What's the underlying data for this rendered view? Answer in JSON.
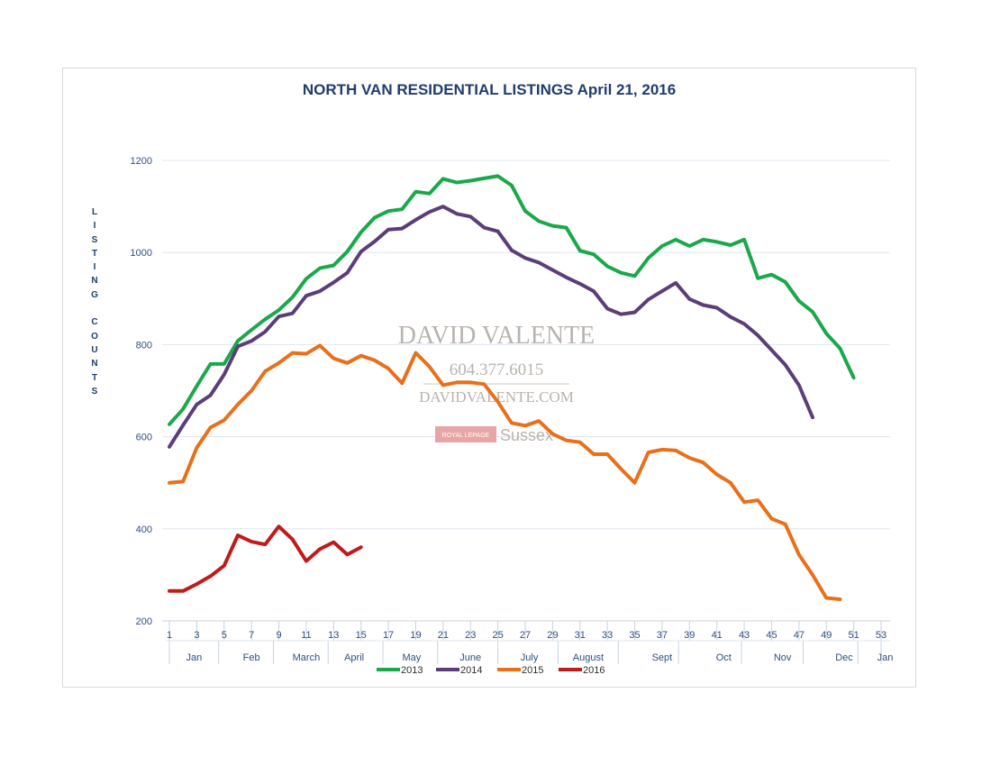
{
  "chart_data": {
    "type": "line",
    "title": "NORTH VAN RESIDENTIAL LISTINGS April 21, 2016",
    "ylabel": "LISTING COUNTS",
    "xlabel": "",
    "ylim": [
      200,
      1200
    ],
    "yticks": [
      200,
      400,
      600,
      800,
      1000,
      1200
    ],
    "xlim": [
      1,
      53
    ],
    "xticks": [
      1,
      3,
      5,
      7,
      9,
      11,
      13,
      15,
      17,
      19,
      21,
      23,
      25,
      27,
      29,
      31,
      33,
      35,
      37,
      39,
      41,
      43,
      45,
      47,
      49,
      51,
      53
    ],
    "months": [
      {
        "label": "Jan",
        "week": 2.8
      },
      {
        "label": "Feb",
        "week": 7
      },
      {
        "label": "March",
        "week": 11
      },
      {
        "label": "April",
        "week": 14.5
      },
      {
        "label": "May",
        "week": 18.7
      },
      {
        "label": "June",
        "week": 23
      },
      {
        "label": "July",
        "week": 27.3
      },
      {
        "label": "August",
        "week": 31.6
      },
      {
        "label": "Sept",
        "week": 37
      },
      {
        "label": "Oct",
        "week": 41.5
      },
      {
        "label": "Nov",
        "week": 45.8
      },
      {
        "label": "Dec",
        "week": 50.3
      },
      {
        "label": "Jan",
        "week": 53.3
      }
    ],
    "grid": true,
    "legend": "bottom",
    "series": [
      {
        "name": "2013",
        "color": "#1aa84a",
        "values": [
          [
            1,
            627
          ],
          [
            2,
            660
          ],
          [
            3,
            710
          ],
          [
            4,
            758
          ],
          [
            5,
            758
          ],
          [
            6,
            808
          ],
          [
            7,
            832
          ],
          [
            8,
            855
          ],
          [
            9,
            875
          ],
          [
            10,
            903
          ],
          [
            11,
            943
          ],
          [
            12,
            966
          ],
          [
            13,
            972
          ],
          [
            14,
            1002
          ],
          [
            15,
            1044
          ],
          [
            16,
            1076
          ],
          [
            17,
            1090
          ],
          [
            18,
            1094
          ],
          [
            19,
            1132
          ],
          [
            20,
            1128
          ],
          [
            21,
            1160
          ],
          [
            22,
            1152
          ],
          [
            23,
            1156
          ],
          [
            24,
            1161
          ],
          [
            25,
            1166
          ],
          [
            26,
            1146
          ],
          [
            27,
            1090
          ],
          [
            28,
            1068
          ],
          [
            29,
            1058
          ],
          [
            30,
            1054
          ],
          [
            31,
            1004
          ],
          [
            32,
            996
          ],
          [
            33,
            970
          ],
          [
            34,
            956
          ],
          [
            35,
            949
          ],
          [
            36,
            988
          ],
          [
            37,
            1014
          ],
          [
            38,
            1028
          ],
          [
            39,
            1014
          ],
          [
            40,
            1028
          ],
          [
            41,
            1023
          ],
          [
            42,
            1016
          ],
          [
            43,
            1028
          ],
          [
            44,
            944
          ],
          [
            45,
            952
          ],
          [
            46,
            936
          ],
          [
            47,
            895
          ],
          [
            48,
            871
          ],
          [
            49,
            824
          ],
          [
            50,
            792
          ],
          [
            51,
            728
          ]
        ]
      },
      {
        "name": "2014",
        "color": "#5b3d7a",
        "values": [
          [
            1,
            578
          ],
          [
            2,
            625
          ],
          [
            3,
            670
          ],
          [
            4,
            690
          ],
          [
            5,
            735
          ],
          [
            6,
            796
          ],
          [
            7,
            808
          ],
          [
            8,
            828
          ],
          [
            9,
            861
          ],
          [
            10,
            868
          ],
          [
            11,
            906
          ],
          [
            12,
            916
          ],
          [
            13,
            935
          ],
          [
            14,
            956
          ],
          [
            15,
            1002
          ],
          [
            16,
            1024
          ],
          [
            17,
            1050
          ],
          [
            18,
            1052
          ],
          [
            19,
            1071
          ],
          [
            20,
            1088
          ],
          [
            21,
            1100
          ],
          [
            22,
            1084
          ],
          [
            23,
            1078
          ],
          [
            24,
            1054
          ],
          [
            25,
            1046
          ],
          [
            26,
            1005
          ],
          [
            27,
            988
          ],
          [
            28,
            978
          ],
          [
            29,
            962
          ],
          [
            30,
            946
          ],
          [
            31,
            932
          ],
          [
            32,
            916
          ],
          [
            33,
            878
          ],
          [
            34,
            866
          ],
          [
            35,
            870
          ],
          [
            36,
            898
          ],
          [
            37,
            916
          ],
          [
            38,
            934
          ],
          [
            39,
            899
          ],
          [
            40,
            886
          ],
          [
            41,
            880
          ],
          [
            42,
            860
          ],
          [
            43,
            845
          ],
          [
            44,
            820
          ],
          [
            45,
            788
          ],
          [
            46,
            756
          ],
          [
            47,
            712
          ],
          [
            48,
            642
          ]
        ]
      },
      {
        "name": "2015",
        "color": "#e8701a",
        "values": [
          [
            1,
            500
          ],
          [
            2,
            503
          ],
          [
            3,
            576
          ],
          [
            4,
            620
          ],
          [
            5,
            636
          ],
          [
            6,
            670
          ],
          [
            7,
            700
          ],
          [
            8,
            742
          ],
          [
            9,
            760
          ],
          [
            10,
            782
          ],
          [
            11,
            780
          ],
          [
            12,
            798
          ],
          [
            13,
            770
          ],
          [
            14,
            760
          ],
          [
            15,
            776
          ],
          [
            16,
            766
          ],
          [
            17,
            748
          ],
          [
            18,
            716
          ],
          [
            19,
            782
          ],
          [
            20,
            752
          ],
          [
            21,
            712
          ],
          [
            22,
            718
          ],
          [
            23,
            718
          ],
          [
            24,
            714
          ],
          [
            25,
            676
          ],
          [
            26,
            630
          ],
          [
            27,
            624
          ],
          [
            28,
            634
          ],
          [
            29,
            606
          ],
          [
            30,
            592
          ],
          [
            31,
            588
          ],
          [
            32,
            562
          ],
          [
            33,
            562
          ],
          [
            34,
            530
          ],
          [
            35,
            500
          ],
          [
            36,
            566
          ],
          [
            37,
            572
          ],
          [
            38,
            570
          ],
          [
            39,
            554
          ],
          [
            40,
            544
          ],
          [
            41,
            518
          ],
          [
            42,
            500
          ],
          [
            43,
            458
          ],
          [
            44,
            462
          ],
          [
            45,
            422
          ],
          [
            46,
            410
          ],
          [
            47,
            344
          ],
          [
            48,
            300
          ],
          [
            49,
            250
          ],
          [
            50,
            247
          ]
        ]
      },
      {
        "name": "2016",
        "color": "#c01a1a",
        "values": [
          [
            1,
            265
          ],
          [
            2,
            265
          ],
          [
            3,
            280
          ],
          [
            4,
            297
          ],
          [
            5,
            320
          ],
          [
            6,
            386
          ],
          [
            7,
            372
          ],
          [
            8,
            366
          ],
          [
            9,
            405
          ],
          [
            10,
            377
          ],
          [
            11,
            330
          ],
          [
            12,
            356
          ],
          [
            13,
            371
          ],
          [
            14,
            344
          ],
          [
            15,
            360
          ]
        ]
      }
    ]
  },
  "watermark": {
    "name": "DAVID VALENTE",
    "phone": "604.377.6015",
    "website": "DAVIDVALENTE.COM",
    "brand_box": "ROYAL LEPAGE",
    "brand_text": "Sussex"
  }
}
